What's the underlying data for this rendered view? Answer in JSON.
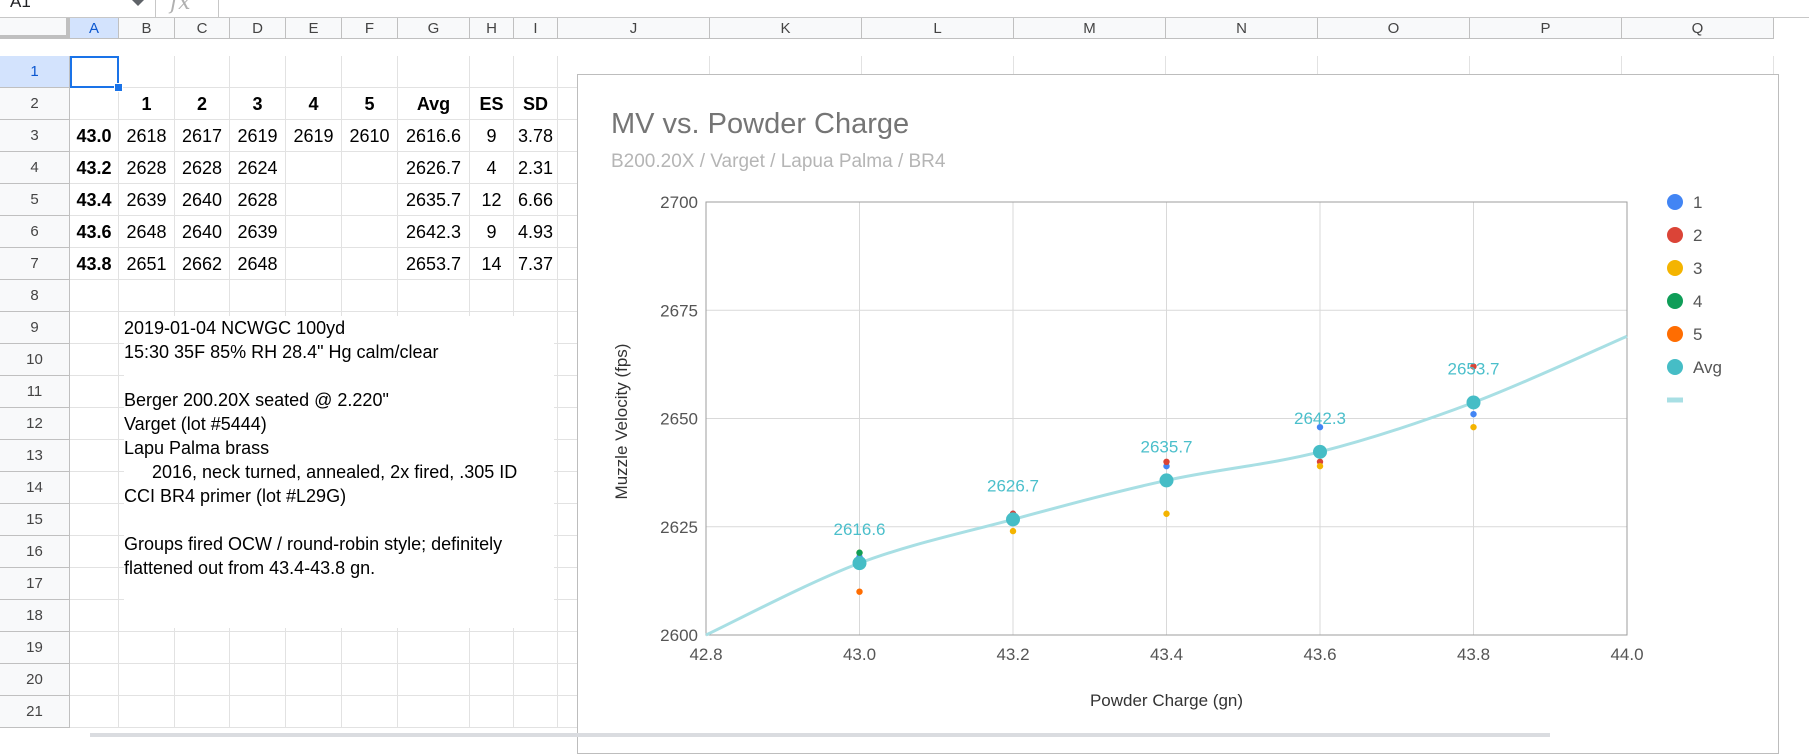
{
  "formula_bar": {
    "name_box": "A1",
    "fx": "fx"
  },
  "columns": [
    "A",
    "B",
    "C",
    "D",
    "E",
    "F",
    "G",
    "H",
    "I",
    "J",
    "K",
    "L",
    "M",
    "N",
    "O",
    "P",
    "Q"
  ],
  "rows": [
    "1",
    "2",
    "3",
    "4",
    "5",
    "6",
    "7",
    "8",
    "9",
    "10",
    "11",
    "12",
    "13",
    "14",
    "15",
    "16",
    "17",
    "18",
    "19",
    "20",
    "21"
  ],
  "table": {
    "headers": [
      "1",
      "2",
      "3",
      "4",
      "5",
      "Avg",
      "ES",
      "SD"
    ],
    "rows": [
      {
        "charge": "43.0",
        "s1": "2618",
        "s2": "2617",
        "s3": "2619",
        "s4": "2619",
        "s5": "2610",
        "avg": "2616.6",
        "es": "9",
        "sd": "3.78"
      },
      {
        "charge": "43.2",
        "s1": "2628",
        "s2": "2628",
        "s3": "2624",
        "s4": "",
        "s5": "",
        "avg": "2626.7",
        "es": "4",
        "sd": "2.31"
      },
      {
        "charge": "43.4",
        "s1": "2639",
        "s2": "2640",
        "s3": "2628",
        "s4": "",
        "s5": "",
        "avg": "2635.7",
        "es": "12",
        "sd": "6.66"
      },
      {
        "charge": "43.6",
        "s1": "2648",
        "s2": "2640",
        "s3": "2639",
        "s4": "",
        "s5": "",
        "avg": "2642.3",
        "es": "9",
        "sd": "4.93"
      },
      {
        "charge": "43.8",
        "s1": "2651",
        "s2": "2662",
        "s3": "2648",
        "s4": "",
        "s5": "",
        "avg": "2653.7",
        "es": "14",
        "sd": "7.37"
      }
    ]
  },
  "notes": [
    "2019-01-04 NCWGC 100yd",
    "15:30 35F 85% RH 28.4\" Hg calm/clear",
    "",
    "Berger 200.20X seated @ 2.220\"",
    "Varget (lot #5444)",
    "Lapu Palma brass",
    "2016, neck turned, annealed, 2x fired, .305 ID",
    "CCI BR4 primer (lot #L29G)",
    "",
    "Groups fired OCW / round-robin style; definitely",
    "flattened out from 43.4-43.8 gn."
  ],
  "chart_data": {
    "type": "scatter",
    "title": "MV vs. Powder Charge",
    "subtitle": "B200.20X / Varget / Lapua Palma / BR4",
    "xlabel": "Powder Charge (gn)",
    "ylabel": "Muzzle Velocity (fps)",
    "xlim": [
      42.8,
      44.0
    ],
    "ylim": [
      2600,
      2700
    ],
    "xticks": [
      "42.8",
      "43.0",
      "43.2",
      "43.4",
      "43.6",
      "43.8",
      "44.0"
    ],
    "yticks": [
      "2600",
      "2625",
      "2650",
      "2675",
      "2700"
    ],
    "grid": true,
    "legend_position": "right",
    "x": [
      43.0,
      43.2,
      43.4,
      43.6,
      43.8
    ],
    "series": [
      {
        "name": "1",
        "color": "#4285f4",
        "values": [
          2618,
          2628,
          2639,
          2648,
          2651
        ]
      },
      {
        "name": "2",
        "color": "#db4437",
        "values": [
          2617,
          2628,
          2640,
          2640,
          2662
        ]
      },
      {
        "name": "3",
        "color": "#f4b400",
        "values": [
          2619,
          2624,
          2628,
          2639,
          2648
        ]
      },
      {
        "name": "4",
        "color": "#0f9d58",
        "values": [
          2619,
          null,
          null,
          null,
          null
        ]
      },
      {
        "name": "5",
        "color": "#ff6d01",
        "values": [
          2610,
          null,
          null,
          null,
          null
        ]
      },
      {
        "name": "Avg",
        "color": "#46bdc6",
        "values": [
          2616.6,
          2626.7,
          2635.7,
          2642.3,
          2653.7
        ],
        "data_labels": [
          "2616.6",
          "2626.7",
          "2635.7",
          "2642.3",
          "2653.7"
        ]
      }
    ],
    "trendline": {
      "color": "#a8dfe4",
      "from": [
        42.8,
        2600
      ],
      "to": [
        44.0,
        2669
      ]
    }
  }
}
